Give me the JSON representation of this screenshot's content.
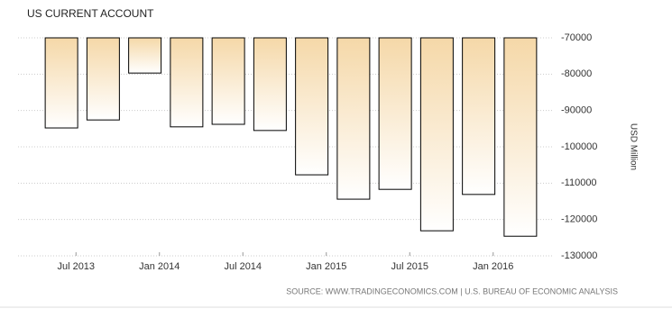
{
  "chart_data": {
    "type": "bar",
    "title": "US CURRENT ACCOUNT",
    "categories": [
      null,
      "Jul 2013",
      null,
      "Jan 2014",
      null,
      "Jul 2014",
      null,
      "Jan 2015",
      null,
      "Jul 2015",
      null,
      "Jan 2016"
    ],
    "values": [
      -94800,
      -92600,
      -79700,
      -94500,
      -93800,
      -95500,
      -107700,
      -114400,
      -111700,
      -123100,
      -113100,
      -124600
    ],
    "color": "#f5d8a8",
    "ylim": [
      -130000,
      -70000
    ],
    "yticks": [
      -70000,
      -80000,
      -90000,
      -100000,
      -110000,
      -120000,
      -130000
    ],
    "ylabel": "USD Million",
    "grid": true,
    "source": "SOURCE: WWW.TRADINGECONOMICS.COM | U.S. BUREAU OF ECONOMIC ANALYSIS"
  }
}
